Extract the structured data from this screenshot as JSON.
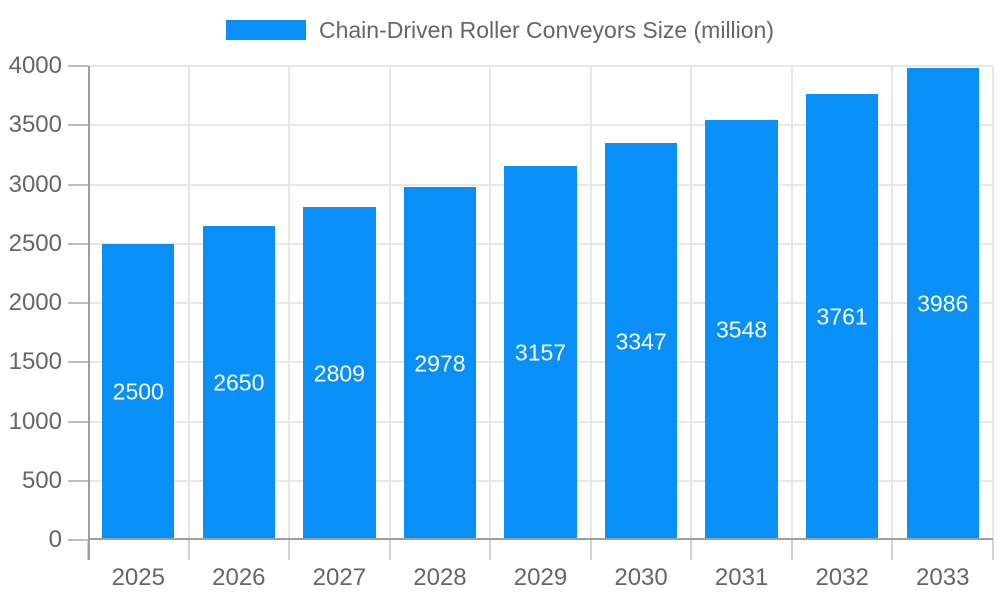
{
  "chart_data": {
    "type": "bar",
    "title": "Chain-Driven Roller Conveyors Size (million)",
    "categories": [
      "2025",
      "2026",
      "2027",
      "2028",
      "2029",
      "2030",
      "2031",
      "2032",
      "2033"
    ],
    "values": [
      2500,
      2650,
      2809,
      2978,
      3157,
      3347,
      3548,
      3761,
      3986
    ],
    "xlabel": "",
    "ylabel": "",
    "ylim": [
      0,
      4000
    ],
    "ytick_step": 500,
    "yticks": [
      0,
      500,
      1000,
      1500,
      2000,
      2500,
      3000,
      3500,
      4000
    ],
    "grid": true,
    "legend_position": "top",
    "colors": {
      "bar": "#0890f8",
      "bar_value_label": "#ffffff",
      "tick_text": "#666666",
      "axis_line": "#9e9e9e",
      "gridline": "#e7e7e7"
    }
  }
}
